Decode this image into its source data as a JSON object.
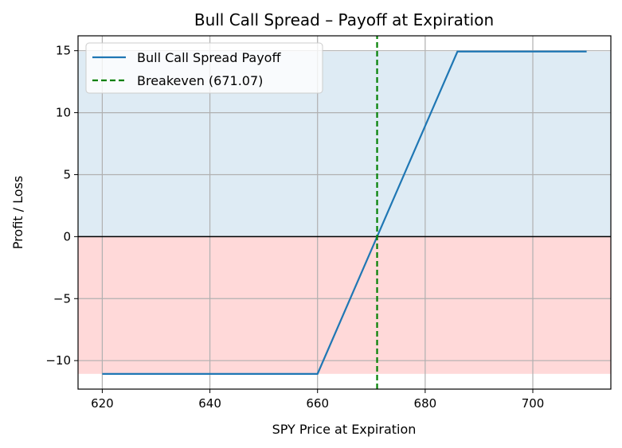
{
  "chart_data": {
    "type": "line",
    "title": "Bull Call Spread – Payoff at Expiration",
    "xlabel": "SPY Price at Expiration",
    "ylabel": "Profit / Loss",
    "xlim": [
      615.5,
      714.5
    ],
    "ylim": [
      -12.3,
      16.2
    ],
    "xticks": [
      620,
      640,
      660,
      680,
      700
    ],
    "xtick_labels": [
      "620",
      "640",
      "660",
      "680",
      "700"
    ],
    "yticks": [
      -10,
      -5,
      0,
      5,
      10,
      15
    ],
    "ytick_labels": [
      "−10",
      "−5",
      "0",
      "5",
      "10",
      "15"
    ],
    "grid": true,
    "legend_position": "top-left",
    "series": [
      {
        "name": "Bull Call Spread Payoff",
        "color": "#1f77b4",
        "style": "solid",
        "x": [
          620,
          660,
          686,
          710
        ],
        "y": [
          -11.07,
          -11.07,
          14.93,
          14.93
        ]
      },
      {
        "name": "Breakeven (671.07)",
        "color": "#008000",
        "style": "dashed",
        "x": [
          671.07,
          671.07
        ],
        "y": [
          -12.3,
          16.2
        ]
      }
    ],
    "shaded_regions": [
      {
        "y_from": 0,
        "y_to": 14.93,
        "color": "#1f77b4",
        "opacity": 0.15
      },
      {
        "y_from": -11.07,
        "y_to": 0,
        "color": "#ff0000",
        "opacity": 0.15
      }
    ],
    "zero_line": {
      "y": 0,
      "color": "#000000"
    }
  }
}
